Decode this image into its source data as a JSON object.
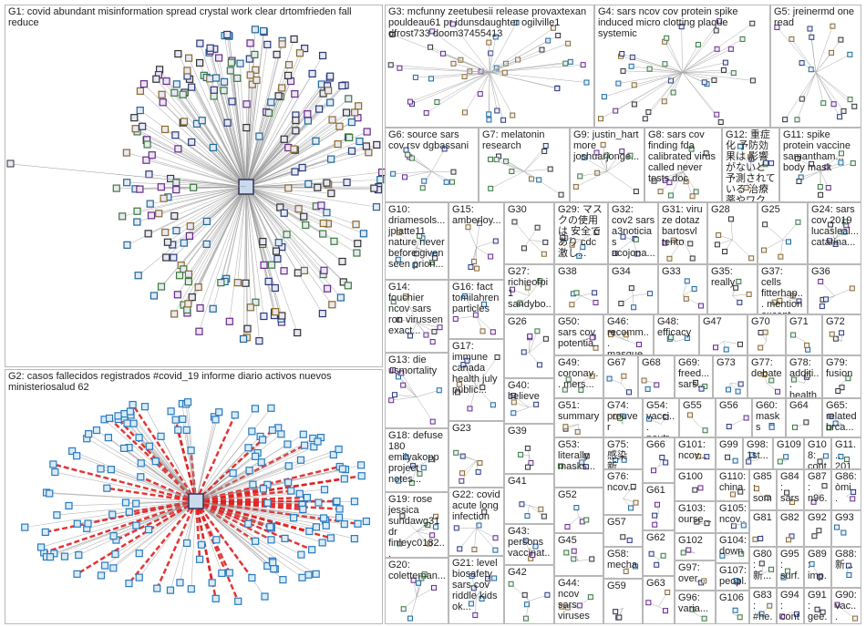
{
  "groups": [
    "G1: covid abundant misinformation spread crystal work clear drtomfrieden fall reduce",
    "G2: casos fallecidos registrados #covid_19 informe diario activos nuevos ministeriosalud 62",
    "G3: mcfunny zeetubesii release provaxtexan pouldeau61 pr idunsdaughter ogilville1 dfrost733 doom37455413",
    "G4: sars ncov cov protein spike induced micro clotting plaque systemic",
    "G5: jreinermd one read",
    "G6: source sars cov rsv dgbassani",
    "G7: melatonin research",
    "G9: justin_hart more joshuarjonge...",
    "G8: sars cov finding fda calibrated virus called never tests doc",
    "G12: 重症化 予防効果は 影響がないと 予測されている 治療薬やワク...",
    "G11: spike protein vaccine samantham... body mask",
    "G10: driamesols... jplatte11 nature never before given seen prion...",
    "G15: amberloy...",
    "G30",
    "G29: マスクの使用は 安全であり cdc 激し...",
    "G32: cov2 sars a3noticias acojona...",
    "G31: viru ze dotaz bartosvl tento",
    "G28",
    "G25",
    "G24: sars cov 2019 lucasleal... catarina...",
    "G14: fouchier ncov sars ron virussen exact...",
    "G16: fact tomilahren particles",
    "G27: richieofpi1 sandybo...",
    "G38",
    "G34",
    "G33",
    "G35: really",
    "G37: cells fitterhap... mention except...",
    "G36",
    "G26",
    "G50: sars cov potentia...",
    "G46: recomm... masque...",
    "G48: efficacy",
    "G47",
    "G70",
    "G71",
    "G72",
    "G13: die usmortality",
    "G17: immune canada health july public...",
    "G40: believe",
    "G49: coronav... mers...",
    "G67",
    "G68",
    "G69: freed... sars...",
    "G73",
    "G77: debate",
    "G78: additi... health...",
    "G79: fusion",
    "G51: summary",
    "G74: prouver",
    "G54: vacci... neutr...",
    "G55",
    "G56",
    "G60: masks",
    "G64",
    "G65: related brca...",
    "G18: defuse 180 emilyakopp project notes...",
    "G23",
    "G39",
    "G53: literally masks...",
    "G75: 感染 新...",
    "G66",
    "G101: ncov...",
    "G99",
    "G98: 1st...",
    "G109",
    "G108: cont...",
    "G11... 201...",
    "G19: rose jessica sundawg31 dr finleyc0182...",
    "G22: covid acute long infection",
    "G41",
    "G52",
    "G76: ncov...",
    "G61",
    "G100",
    "G110: china...",
    "G85: som...",
    "G84: sars...",
    "G87: n96...",
    "G86: òmi...",
    "G103: ourse...",
    "G105: ncov...",
    "G81",
    "G82",
    "G92",
    "G93",
    "G20: coletteman...",
    "G21: level biosafety sars cov riddle kids ok...",
    "G43: persons vaccinat...",
    "G42",
    "G45",
    "G57",
    "G62",
    "G102",
    "G104: down",
    "G80: 新...",
    "G95: surf...",
    "G89: imp...",
    "G88: 新...",
    "G58: mecha...",
    "G97: over...",
    "G107: peopl...",
    "G44: ncov sars viruses",
    "G59",
    "G63",
    "G96: varia...",
    "G106",
    "G83: #he...",
    "G94: cont...",
    "G91: gee...",
    "G90: vac..."
  ]
}
